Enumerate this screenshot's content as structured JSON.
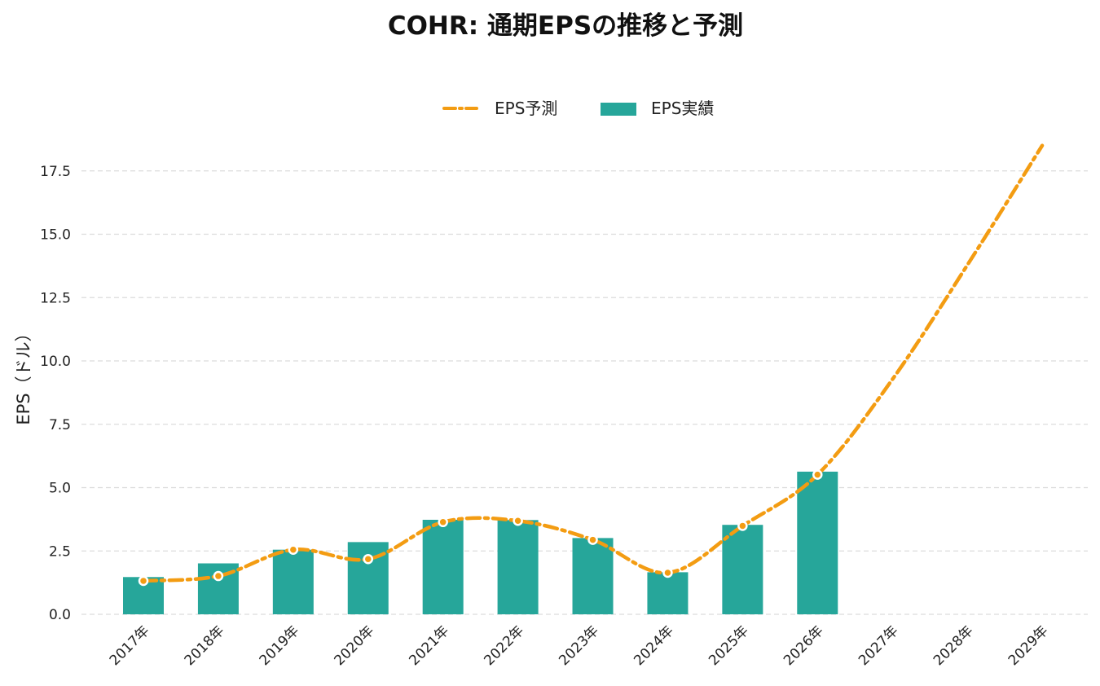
{
  "chart_data": {
    "type": "bar",
    "title": "COHR: 通期EPSの推移と予測",
    "xlabel": "",
    "ylabel": "EPS（ドル）",
    "categories": [
      "2017年",
      "2018年",
      "2019年",
      "2020年",
      "2021年",
      "2022年",
      "2023年",
      "2024年",
      "2025年",
      "2026年",
      "2027年",
      "2028年",
      "2029年"
    ],
    "ylim": [
      0,
      18.9
    ],
    "yticks": [
      0.0,
      2.5,
      5.0,
      7.5,
      10.0,
      12.5,
      15.0,
      17.5
    ],
    "ytick_labels": [
      "0.0",
      "2.5",
      "5.0",
      "7.5",
      "10.0",
      "12.5",
      "15.0",
      "17.5"
    ],
    "grid": "horizontal-dashed",
    "legend_position": "top-center",
    "series": [
      {
        "name": "EPS実績",
        "kind": "bar",
        "color": "#26a69a",
        "values": [
          1.47,
          2.01,
          2.55,
          2.85,
          3.73,
          3.72,
          3.01,
          1.66,
          3.53,
          5.63,
          null,
          null,
          null
        ]
      },
      {
        "name": "EPS予測",
        "kind": "line",
        "style": "dash-dot",
        "color": "#f39c12",
        "values": [
          1.32,
          1.51,
          2.55,
          2.18,
          3.64,
          3.69,
          2.94,
          1.64,
          3.49,
          5.51,
          9.27,
          13.78,
          18.5
        ],
        "markers": [
          true,
          true,
          true,
          true,
          true,
          true,
          true,
          true,
          true,
          true,
          false,
          false,
          false
        ]
      }
    ]
  }
}
